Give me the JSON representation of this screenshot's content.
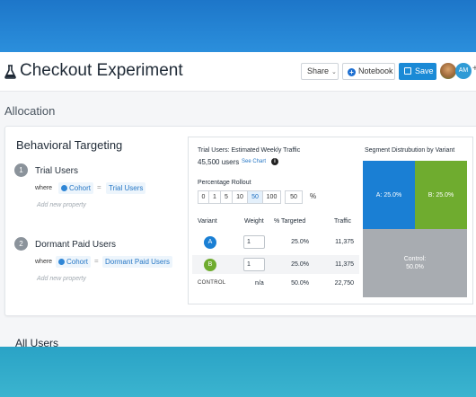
{
  "header": {
    "title": "Checkout Experiment",
    "share_label": "Share",
    "notebook_label": "Notebook",
    "save_label": "Save",
    "avatar_initials": "AM"
  },
  "section": {
    "title": "Allocation"
  },
  "targeting": {
    "title": "Behavioral Targeting",
    "groups": [
      {
        "number": "1",
        "name": "Trial Users",
        "where": "where",
        "property": "Cohort",
        "operator": "=",
        "value": "Trial Users",
        "add_property": "Add new property"
      },
      {
        "number": "2",
        "name": "Dormant Paid Users",
        "where": "where",
        "property": "Cohort",
        "operator": "=",
        "value": "Dormant Paid Users",
        "add_property": "Add new property"
      }
    ]
  },
  "traffic": {
    "title": "Trial Users: Estimated Weekly Traffic",
    "users": "45,500 users",
    "see_chart": "See Chart",
    "rollout_title": "Percentage Rollout",
    "rollout_options": [
      "0",
      "1",
      "5",
      "10",
      "50",
      "100"
    ],
    "rollout_selected": "50",
    "rollout_custom": "50",
    "rollout_unit": "%",
    "columns": [
      "Variant",
      "Weight",
      "% Targeted",
      "Traffic"
    ],
    "rows": [
      {
        "variant": "A",
        "weight": "1",
        "targeted": "25.0%",
        "traffic": "11,375",
        "color": "#1a7fd4"
      },
      {
        "variant": "B",
        "weight": "1",
        "targeted": "25.0%",
        "traffic": "11,375",
        "color": "#6fac2f"
      },
      {
        "variant": "CONTROL",
        "weight": "n/a",
        "targeted": "50.0%",
        "traffic": "22,750"
      }
    ]
  },
  "segments": {
    "title": "Segment Distrubution by Variant",
    "a_label": "A: 25.0%",
    "b_label": "B: 25.0%",
    "control_label": "Control:",
    "control_value": "50.0%",
    "a_color": "#1a7fd4",
    "b_color": "#6fac2f",
    "control_color": "#a8acb1"
  },
  "all_users": {
    "title": "All Users"
  }
}
